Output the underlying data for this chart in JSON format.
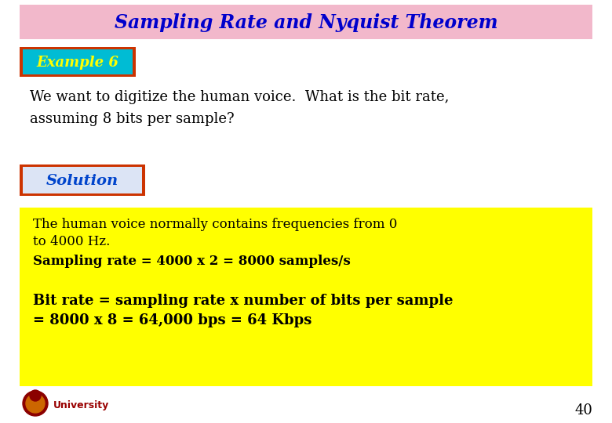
{
  "title": "Sampling Rate and Nyquist Theorem",
  "title_bg": "#f2b8cb",
  "title_color": "#0000cc",
  "title_fontsize": 17,
  "example_label": "Example 6",
  "example_bg": "#00bcd4",
  "example_border": "#cc3300",
  "example_text_color": "#ffff00",
  "question_text": "We want to digitize the human voice.  What is the bit rate,\nassuming 8 bits per sample?",
  "question_color": "#000000",
  "solution_label": "Solution",
  "solution_bg": "#dce4f5",
  "solution_border": "#cc3300",
  "solution_text_color": "#0044cc",
  "solution_box_bg": "#ffff00",
  "solution_line1a": "The human voice normally contains frequencies from 0",
  "solution_line1b": "to 4000 Hz.",
  "solution_line2": "Sampling rate = 4000 x 2 = 8000 samples/s",
  "solution_line3a": "Bit rate = sampling rate x number of bits per sample",
  "solution_line3b": "= 8000 x 8 = 64,000 bps = 64 Kbps",
  "solution_text_color2": "#000000",
  "university_text": "University",
  "university_color": "#990000",
  "page_number": "40",
  "bg_color": "#ffffff"
}
